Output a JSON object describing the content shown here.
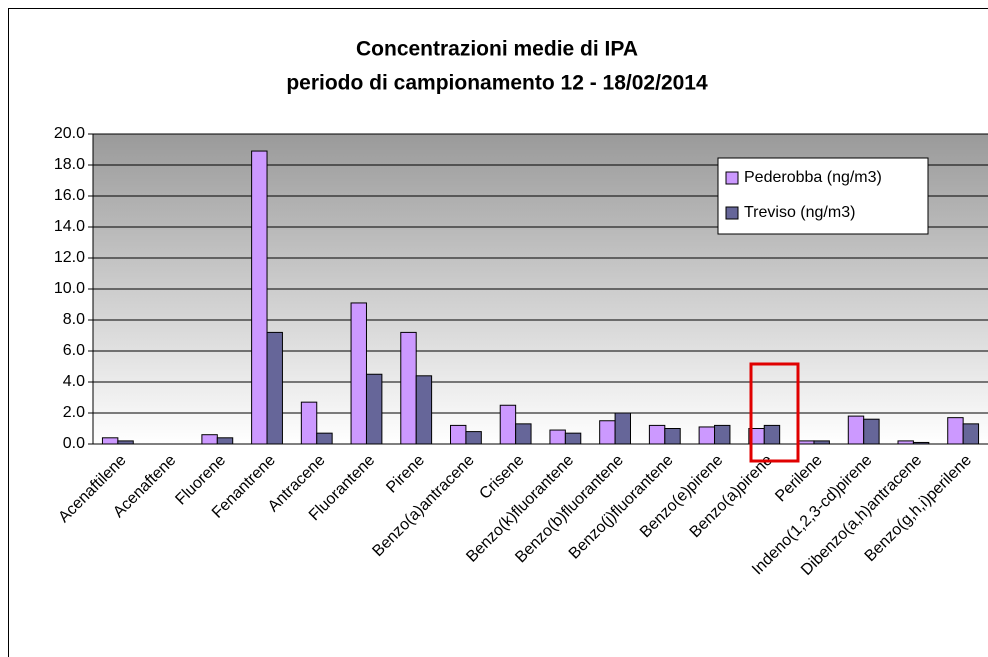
{
  "chart_data": {
    "type": "bar",
    "title": [
      "Concentrazioni medie di IPA",
      "periodo di campionamento 12 - 18/02/2014"
    ],
    "categories": [
      "Acenaftilene",
      "Acenaftene",
      "Fluorene",
      "Fenantrene",
      "Antracene",
      "Fluorantene",
      "Pirene",
      "Benzo(a)antracene",
      "Crisene",
      "Benzo(k)fluorantene",
      "Benzo(b)fluorantene",
      "Benzo(j)fluorantene",
      "Benzo(e)pirene",
      "Benzo(a)pirene",
      "Perilene",
      "Indeno(1,2,3-cd)pirene",
      "Dibenzo(a,h)antracene",
      "Benzo(g,h,i)perilene"
    ],
    "series": [
      {
        "name": "Pederobba (ng/m3)",
        "color": "#cc99ff",
        "values": [
          0.4,
          0,
          0.6,
          18.9,
          2.7,
          9.1,
          7.2,
          1.2,
          2.5,
          0.9,
          1.5,
          1.2,
          1.1,
          1.0,
          0.2,
          1.8,
          0.2,
          1.7
        ]
      },
      {
        "name": "Treviso (ng/m3)",
        "color": "#666699",
        "values": [
          0.2,
          0,
          0.4,
          7.2,
          0.7,
          4.5,
          4.4,
          0.8,
          1.3,
          0.7,
          2.0,
          1.0,
          1.2,
          1.2,
          0.2,
          1.6,
          0.1,
          1.3
        ]
      }
    ],
    "ylim": [
      0,
      20
    ],
    "yticks": [
      {
        "value": 0,
        "label": "0.0"
      },
      {
        "value": 2,
        "label": "2.0"
      },
      {
        "value": 4,
        "label": "4.0"
      },
      {
        "value": 6,
        "label": "6.0"
      },
      {
        "value": 8,
        "label": "8.0"
      },
      {
        "value": 10,
        "label": "10.0"
      },
      {
        "value": 12,
        "label": "12.0"
      },
      {
        "value": 14,
        "label": "14.0"
      },
      {
        "value": 16,
        "label": "16.0"
      },
      {
        "value": 18,
        "label": "18.0"
      },
      {
        "value": 20,
        "label": "20.0"
      }
    ],
    "grid": true,
    "legend": "upper right"
  }
}
